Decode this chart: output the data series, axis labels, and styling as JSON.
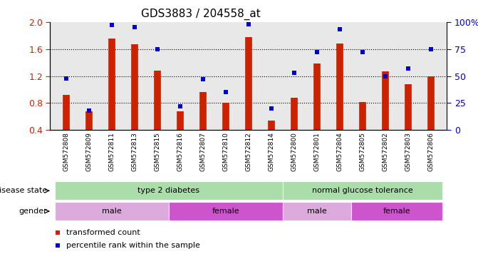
{
  "title": "GDS3883 / 204558_at",
  "samples": [
    "GSM572808",
    "GSM572809",
    "GSM572811",
    "GSM572813",
    "GSM572815",
    "GSM572816",
    "GSM572807",
    "GSM572810",
    "GSM572812",
    "GSM572814",
    "GSM572800",
    "GSM572801",
    "GSM572804",
    "GSM572805",
    "GSM572802",
    "GSM572803",
    "GSM572806"
  ],
  "bar_values": [
    0.92,
    0.68,
    1.75,
    1.67,
    1.28,
    0.68,
    0.96,
    0.8,
    1.78,
    0.54,
    0.88,
    1.38,
    1.68,
    0.82,
    1.27,
    1.08,
    1.2
  ],
  "dot_values": [
    48,
    18,
    97,
    95,
    75,
    22,
    47,
    35,
    98,
    20,
    53,
    72,
    93,
    72,
    50,
    57,
    75
  ],
  "ylim_left": [
    0.4,
    2.0
  ],
  "ylim_right": [
    0,
    100
  ],
  "yticks_left": [
    0.4,
    0.8,
    1.2,
    1.6,
    2.0
  ],
  "yticks_right": [
    0,
    25,
    50,
    75,
    100
  ],
  "ytick_labels_right": [
    "0",
    "25",
    "50",
    "75",
    "100%"
  ],
  "bar_color": "#cc2200",
  "dot_color": "#0000cc",
  "hgrid_values": [
    0.8,
    1.2,
    1.6
  ],
  "plot_bg": "#e8e8e8",
  "disease_state_groups": [
    {
      "label": "type 2 diabetes",
      "start": 0,
      "end": 9,
      "color": "#aaddaa"
    },
    {
      "label": "normal glucose tolerance",
      "start": 10,
      "end": 16,
      "color": "#aaddaa"
    }
  ],
  "gender_groups": [
    {
      "label": "male",
      "start": 0,
      "end": 4,
      "color": "#ddaadd"
    },
    {
      "label": "female",
      "start": 5,
      "end": 9,
      "color": "#cc55cc"
    },
    {
      "label": "male",
      "start": 10,
      "end": 12,
      "color": "#ddaadd"
    },
    {
      "label": "female",
      "start": 13,
      "end": 16,
      "color": "#cc55cc"
    }
  ],
  "legend": [
    {
      "label": "transformed count",
      "color": "#cc2200"
    },
    {
      "label": "percentile rank within the sample",
      "color": "#0000cc"
    }
  ],
  "disease_state_label": "disease state",
  "gender_label": "gender",
  "fig_width": 6.71,
  "fig_height": 3.84,
  "dpi": 100
}
